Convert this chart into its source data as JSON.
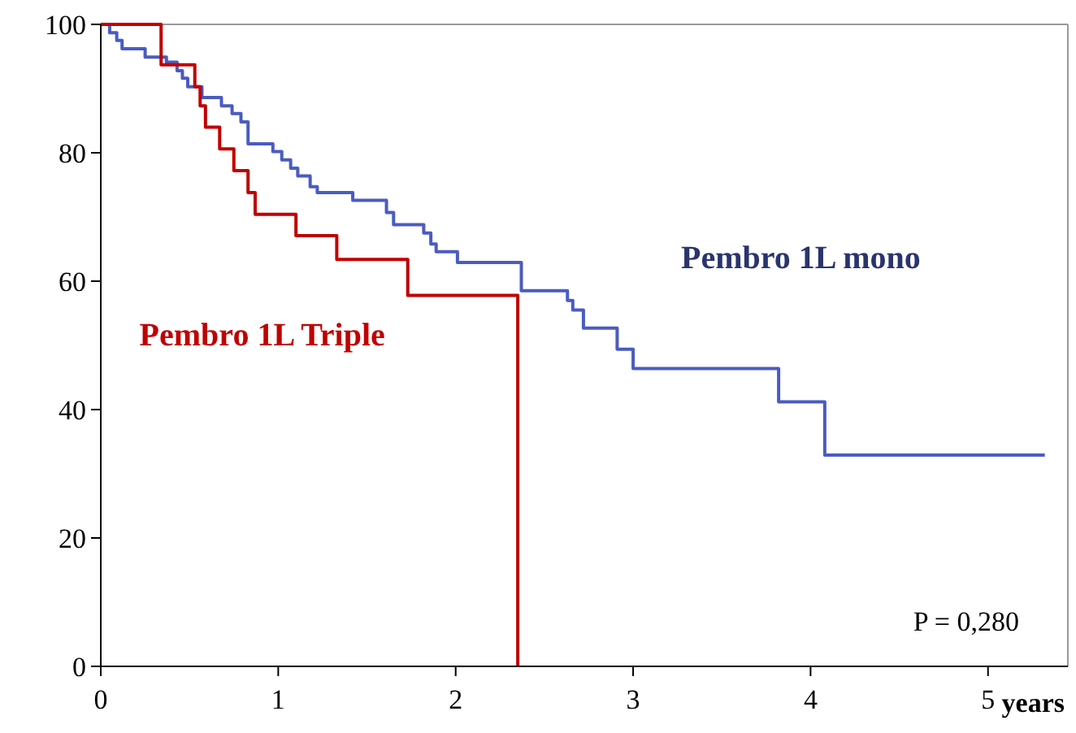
{
  "chart_data": {
    "type": "step",
    "xlabel": "years",
    "xlim": [
      0,
      5.45
    ],
    "ylim": [
      0,
      100
    ],
    "xticks": [
      0,
      1,
      2,
      3,
      4,
      5
    ],
    "yticks": [
      0,
      20,
      40,
      60,
      80,
      100
    ],
    "grid": false,
    "annotations": [
      "P = 0,280"
    ],
    "series": [
      {
        "name": "Pembro 1L mono",
        "color": "#4a5cc0",
        "x": [
          0,
          0.05,
          0.09,
          0.12,
          0.25,
          0.37,
          0.43,
          0.46,
          0.49,
          0.57,
          0.68,
          0.74,
          0.79,
          0.83,
          0.97,
          1.02,
          1.07,
          1.11,
          1.18,
          1.22,
          1.42,
          1.61,
          1.65,
          1.82,
          1.86,
          1.89,
          2.01,
          2.37,
          2.63,
          2.66,
          2.72,
          2.91,
          3.0,
          3.82,
          4.08,
          5.32
        ],
        "values": [
          100,
          98.7,
          97.5,
          96.2,
          94.9,
          94.1,
          92.8,
          91.6,
          90.3,
          88.6,
          87.3,
          86.1,
          84.8,
          81.4,
          80.2,
          78.9,
          77.6,
          76.4,
          74.7,
          73.8,
          72.6,
          70.7,
          68.8,
          67.5,
          65.8,
          64.6,
          62.9,
          58.5,
          57,
          55.5,
          52.7,
          49.4,
          46.4,
          41.2,
          32.9,
          32.9
        ]
      },
      {
        "name": "Pembro 1L Triple",
        "color": "#c00000",
        "x": [
          0,
          0.34,
          0.53,
          0.56,
          0.59,
          0.67,
          0.75,
          0.83,
          0.87,
          1.1,
          1.33,
          1.73,
          2.35
        ],
        "values": [
          100,
          93.7,
          90.3,
          87.3,
          84,
          80.6,
          77.2,
          73.8,
          70.4,
          67.1,
          63.4,
          57.8,
          0
        ]
      }
    ]
  }
}
